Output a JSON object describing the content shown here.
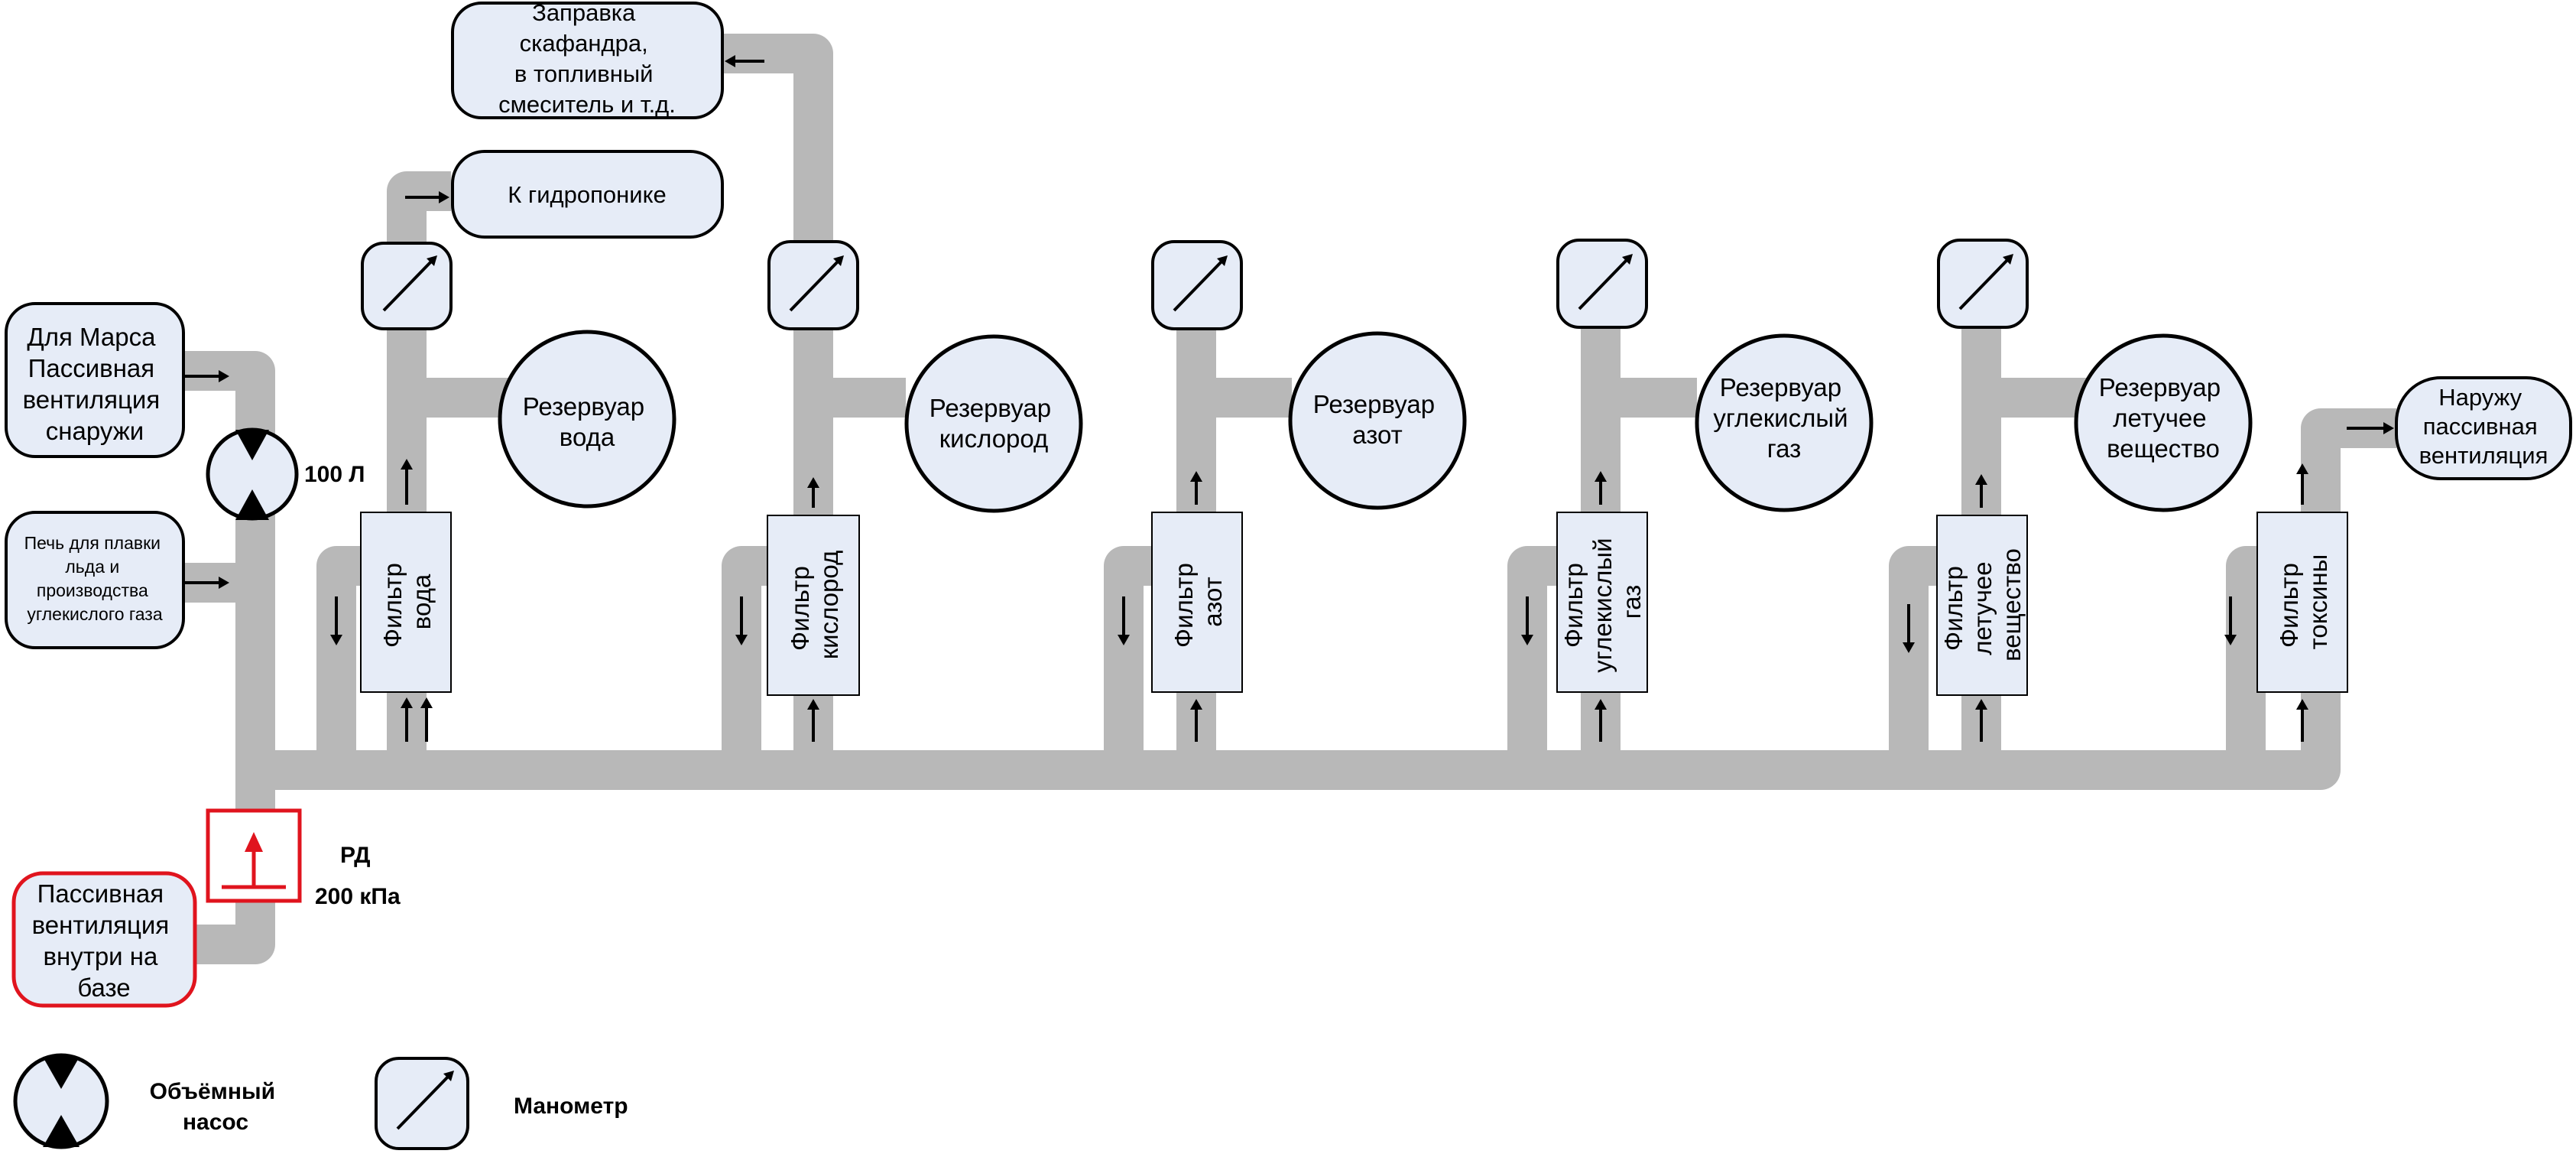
{
  "colors": {
    "pipe": "#b8b8b8",
    "box_fill": "#e6ecf7",
    "outline": "#000000",
    "regulator": "#e0141e"
  },
  "sources": {
    "mars_vent": [
      "Для Марса",
      "Пассивная",
      "вентиляция",
      "снаружи"
    ],
    "furnace": [
      "Печь для плавки",
      "льда и",
      "производства",
      "углекислого газа"
    ],
    "inside_vent": [
      "Пассивная",
      "вентиляция",
      "внутри на",
      "базе"
    ]
  },
  "outputs": {
    "suit": [
      "Заправка",
      "скафандра,",
      "в топливный",
      "смеситель и т.д."
    ],
    "hydroponics": "К гидропонике",
    "outside": [
      "Наружу",
      "пассивная",
      "вентиляция"
    ]
  },
  "pump": {
    "icon": "volumetric-pump-icon",
    "label": "100 Л"
  },
  "regulator": {
    "icon": "pressure-regulator-icon",
    "label": "РД",
    "pressure": "200 кПа"
  },
  "stages": [
    {
      "filter": [
        "Фильтр",
        "вода"
      ],
      "tank": [
        "Резервуар",
        "вода"
      ]
    },
    {
      "filter": [
        "Фильтр",
        "кислород"
      ],
      "tank": [
        "Резервуар",
        "кислород"
      ]
    },
    {
      "filter": [
        "Фильтр",
        "азот"
      ],
      "tank": [
        "Резервуар",
        "азот"
      ]
    },
    {
      "filter": [
        "Фильтр",
        "углекислый",
        "газ"
      ],
      "tank": [
        "Резервуар",
        "углекислый",
        "газ"
      ]
    },
    {
      "filter": [
        "Фильтр",
        "летучее",
        "вещество"
      ],
      "tank": [
        "Резервуар",
        "летучее",
        "вещество"
      ]
    },
    {
      "filter": [
        "Фильтр",
        "токсины"
      ]
    }
  ],
  "legend": {
    "pump": [
      "Объёмный",
      "насос"
    ],
    "gauge": "Манометр"
  }
}
